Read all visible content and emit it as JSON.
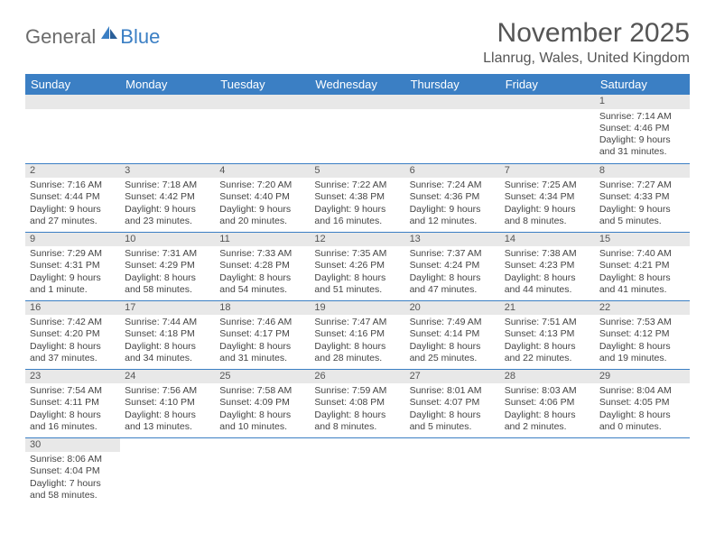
{
  "brand": {
    "part1": "General",
    "part2": "Blue"
  },
  "title": "November 2025",
  "location": "Llanrug, Wales, United Kingdom",
  "colors": {
    "header_bg": "#3b7fc4",
    "header_text": "#ffffff",
    "daynum_bg": "#e8e8e8",
    "border": "#3b7fc4",
    "text": "#444444"
  },
  "day_headers": [
    "Sunday",
    "Monday",
    "Tuesday",
    "Wednesday",
    "Thursday",
    "Friday",
    "Saturday"
  ],
  "weeks": [
    [
      null,
      null,
      null,
      null,
      null,
      null,
      {
        "n": "1",
        "sr": "Sunrise: 7:14 AM",
        "ss": "Sunset: 4:46 PM",
        "dl": "Daylight: 9 hours and 31 minutes."
      }
    ],
    [
      {
        "n": "2",
        "sr": "Sunrise: 7:16 AM",
        "ss": "Sunset: 4:44 PM",
        "dl": "Daylight: 9 hours and 27 minutes."
      },
      {
        "n": "3",
        "sr": "Sunrise: 7:18 AM",
        "ss": "Sunset: 4:42 PM",
        "dl": "Daylight: 9 hours and 23 minutes."
      },
      {
        "n": "4",
        "sr": "Sunrise: 7:20 AM",
        "ss": "Sunset: 4:40 PM",
        "dl": "Daylight: 9 hours and 20 minutes."
      },
      {
        "n": "5",
        "sr": "Sunrise: 7:22 AM",
        "ss": "Sunset: 4:38 PM",
        "dl": "Daylight: 9 hours and 16 minutes."
      },
      {
        "n": "6",
        "sr": "Sunrise: 7:24 AM",
        "ss": "Sunset: 4:36 PM",
        "dl": "Daylight: 9 hours and 12 minutes."
      },
      {
        "n": "7",
        "sr": "Sunrise: 7:25 AM",
        "ss": "Sunset: 4:34 PM",
        "dl": "Daylight: 9 hours and 8 minutes."
      },
      {
        "n": "8",
        "sr": "Sunrise: 7:27 AM",
        "ss": "Sunset: 4:33 PM",
        "dl": "Daylight: 9 hours and 5 minutes."
      }
    ],
    [
      {
        "n": "9",
        "sr": "Sunrise: 7:29 AM",
        "ss": "Sunset: 4:31 PM",
        "dl": "Daylight: 9 hours and 1 minute."
      },
      {
        "n": "10",
        "sr": "Sunrise: 7:31 AM",
        "ss": "Sunset: 4:29 PM",
        "dl": "Daylight: 8 hours and 58 minutes."
      },
      {
        "n": "11",
        "sr": "Sunrise: 7:33 AM",
        "ss": "Sunset: 4:28 PM",
        "dl": "Daylight: 8 hours and 54 minutes."
      },
      {
        "n": "12",
        "sr": "Sunrise: 7:35 AM",
        "ss": "Sunset: 4:26 PM",
        "dl": "Daylight: 8 hours and 51 minutes."
      },
      {
        "n": "13",
        "sr": "Sunrise: 7:37 AM",
        "ss": "Sunset: 4:24 PM",
        "dl": "Daylight: 8 hours and 47 minutes."
      },
      {
        "n": "14",
        "sr": "Sunrise: 7:38 AM",
        "ss": "Sunset: 4:23 PM",
        "dl": "Daylight: 8 hours and 44 minutes."
      },
      {
        "n": "15",
        "sr": "Sunrise: 7:40 AM",
        "ss": "Sunset: 4:21 PM",
        "dl": "Daylight: 8 hours and 41 minutes."
      }
    ],
    [
      {
        "n": "16",
        "sr": "Sunrise: 7:42 AM",
        "ss": "Sunset: 4:20 PM",
        "dl": "Daylight: 8 hours and 37 minutes."
      },
      {
        "n": "17",
        "sr": "Sunrise: 7:44 AM",
        "ss": "Sunset: 4:18 PM",
        "dl": "Daylight: 8 hours and 34 minutes."
      },
      {
        "n": "18",
        "sr": "Sunrise: 7:46 AM",
        "ss": "Sunset: 4:17 PM",
        "dl": "Daylight: 8 hours and 31 minutes."
      },
      {
        "n": "19",
        "sr": "Sunrise: 7:47 AM",
        "ss": "Sunset: 4:16 PM",
        "dl": "Daylight: 8 hours and 28 minutes."
      },
      {
        "n": "20",
        "sr": "Sunrise: 7:49 AM",
        "ss": "Sunset: 4:14 PM",
        "dl": "Daylight: 8 hours and 25 minutes."
      },
      {
        "n": "21",
        "sr": "Sunrise: 7:51 AM",
        "ss": "Sunset: 4:13 PM",
        "dl": "Daylight: 8 hours and 22 minutes."
      },
      {
        "n": "22",
        "sr": "Sunrise: 7:53 AM",
        "ss": "Sunset: 4:12 PM",
        "dl": "Daylight: 8 hours and 19 minutes."
      }
    ],
    [
      {
        "n": "23",
        "sr": "Sunrise: 7:54 AM",
        "ss": "Sunset: 4:11 PM",
        "dl": "Daylight: 8 hours and 16 minutes."
      },
      {
        "n": "24",
        "sr": "Sunrise: 7:56 AM",
        "ss": "Sunset: 4:10 PM",
        "dl": "Daylight: 8 hours and 13 minutes."
      },
      {
        "n": "25",
        "sr": "Sunrise: 7:58 AM",
        "ss": "Sunset: 4:09 PM",
        "dl": "Daylight: 8 hours and 10 minutes."
      },
      {
        "n": "26",
        "sr": "Sunrise: 7:59 AM",
        "ss": "Sunset: 4:08 PM",
        "dl": "Daylight: 8 hours and 8 minutes."
      },
      {
        "n": "27",
        "sr": "Sunrise: 8:01 AM",
        "ss": "Sunset: 4:07 PM",
        "dl": "Daylight: 8 hours and 5 minutes."
      },
      {
        "n": "28",
        "sr": "Sunrise: 8:03 AM",
        "ss": "Sunset: 4:06 PM",
        "dl": "Daylight: 8 hours and 2 minutes."
      },
      {
        "n": "29",
        "sr": "Sunrise: 8:04 AM",
        "ss": "Sunset: 4:05 PM",
        "dl": "Daylight: 8 hours and 0 minutes."
      }
    ],
    [
      {
        "n": "30",
        "sr": "Sunrise: 8:06 AM",
        "ss": "Sunset: 4:04 PM",
        "dl": "Daylight: 7 hours and 58 minutes."
      },
      null,
      null,
      null,
      null,
      null,
      null
    ]
  ]
}
